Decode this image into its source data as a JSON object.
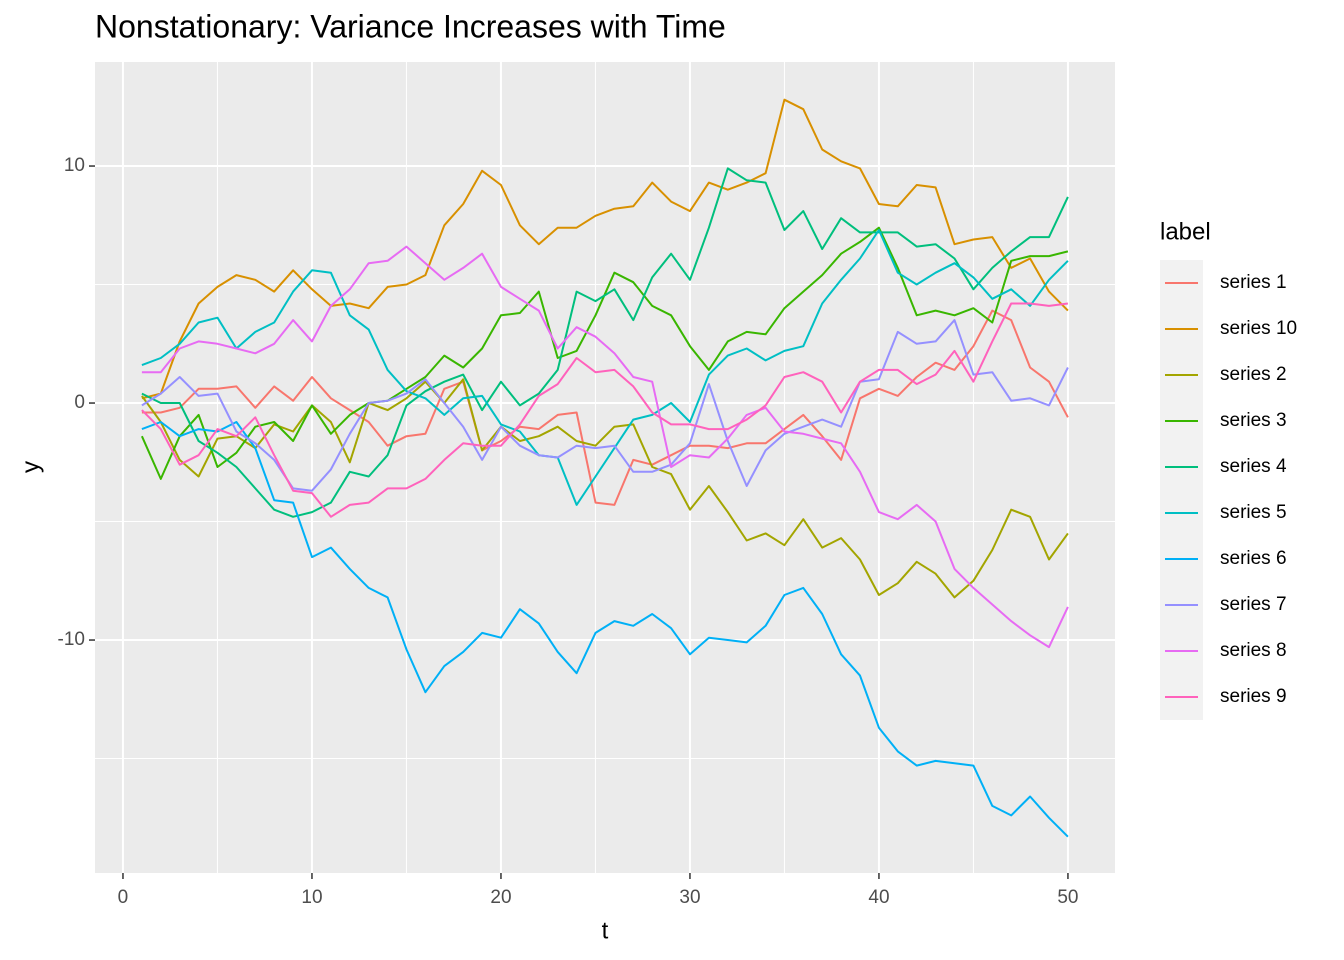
{
  "chart_data": {
    "type": "line",
    "title": "Nonstationary: Variance Increases with Time",
    "x_label": "t",
    "y_label": "y",
    "legend_title": "label",
    "x": [
      1,
      2,
      3,
      4,
      5,
      6,
      7,
      8,
      9,
      10,
      11,
      12,
      13,
      14,
      15,
      16,
      17,
      18,
      19,
      20,
      21,
      22,
      23,
      24,
      25,
      26,
      27,
      28,
      29,
      30,
      31,
      32,
      33,
      34,
      35,
      36,
      37,
      38,
      39,
      40,
      41,
      42,
      43,
      44,
      45,
      46,
      47,
      48,
      49,
      50
    ],
    "xlim": [
      -1.48,
      52.49
    ],
    "xticks": [
      0,
      10,
      20,
      30,
      40,
      50
    ],
    "ylim": [
      -19.83,
      14.39
    ],
    "yticks": [
      -10,
      0,
      10
    ],
    "grid": true,
    "series": [
      {
        "name": "series 1",
        "color": "#F8766D",
        "values": [
          -0.4,
          -0.4,
          -0.2,
          0.6,
          0.6,
          0.7,
          -0.2,
          0.7,
          0.1,
          1.1,
          0.2,
          -0.3,
          -0.8,
          -1.8,
          -1.4,
          -1.3,
          0.6,
          0.9,
          -2.0,
          -1.6,
          -1.0,
          -1.1,
          -0.5,
          -0.4,
          -4.2,
          -4.3,
          -2.4,
          -2.6,
          -2.2,
          -1.8,
          -1.8,
          -1.9,
          -1.7,
          -1.7,
          -1.1,
          -0.5,
          -1.4,
          -2.4,
          0.2,
          0.6,
          0.3,
          1.1,
          1.7,
          1.4,
          2.4,
          3.9,
          3.5,
          1.5,
          0.9,
          -0.6
        ]
      },
      {
        "name": "series 10",
        "color": "#D89000",
        "values": [
          0.2,
          0.4,
          2.6,
          4.2,
          4.9,
          5.4,
          5.2,
          4.7,
          5.6,
          4.8,
          4.1,
          4.2,
          4.0,
          4.9,
          5.0,
          5.4,
          7.5,
          8.4,
          9.8,
          9.2,
          7.5,
          6.7,
          7.4,
          7.4,
          7.9,
          8.2,
          8.3,
          9.3,
          8.5,
          8.1,
          9.3,
          9.0,
          9.3,
          9.7,
          12.8,
          12.4,
          10.7,
          10.2,
          9.9,
          8.4,
          8.3,
          9.2,
          9.1,
          6.7,
          6.9,
          7.0,
          5.7,
          6.1,
          4.7,
          3.9
        ]
      },
      {
        "name": "series 2",
        "color": "#A3A500",
        "values": [
          0.3,
          -0.8,
          -2.4,
          -3.1,
          -1.5,
          -1.4,
          -1.9,
          -0.9,
          -1.2,
          -0.1,
          -0.8,
          -2.5,
          0.0,
          -0.3,
          0.2,
          0.9,
          0.0,
          1.0,
          -2.0,
          -1.0,
          -1.6,
          -1.4,
          -1.0,
          -1.6,
          -1.8,
          -1.0,
          -0.9,
          -2.7,
          -3.0,
          -4.5,
          -3.5,
          -4.6,
          -5.8,
          -5.5,
          -6.0,
          -4.9,
          -6.1,
          -5.7,
          -6.6,
          -8.1,
          -7.6,
          -6.7,
          -7.2,
          -8.2,
          -7.5,
          -6.2,
          -4.5,
          -4.8,
          -6.6,
          -5.5
        ]
      },
      {
        "name": "series 3",
        "color": "#39B600",
        "values": [
          -1.4,
          -3.2,
          -1.4,
          -0.5,
          -2.7,
          -2.1,
          -1.0,
          -0.8,
          -1.6,
          -0.1,
          -1.3,
          -0.5,
          0.0,
          0.1,
          0.6,
          1.1,
          2.0,
          1.5,
          2.3,
          3.7,
          3.8,
          4.7,
          1.9,
          2.2,
          3.7,
          5.5,
          5.1,
          4.1,
          3.7,
          2.4,
          1.4,
          2.6,
          3.0,
          2.9,
          4.0,
          4.7,
          5.4,
          6.3,
          6.8,
          7.4,
          5.7,
          3.7,
          3.9,
          3.7,
          4.0,
          3.4,
          6.0,
          6.2,
          6.2,
          6.4
        ]
      },
      {
        "name": "series 4",
        "color": "#00BF7D",
        "values": [
          0.4,
          0.0,
          0.0,
          -1.6,
          -2.1,
          -2.7,
          -3.6,
          -4.5,
          -4.8,
          -4.6,
          -4.2,
          -2.9,
          -3.1,
          -2.2,
          -0.1,
          0.5,
          0.9,
          1.2,
          -0.3,
          0.9,
          -0.1,
          0.4,
          1.4,
          4.7,
          4.3,
          4.8,
          3.5,
          5.3,
          6.3,
          5.2,
          7.4,
          9.9,
          9.4,
          9.3,
          7.3,
          8.1,
          6.5,
          7.8,
          7.2,
          7.2,
          7.2,
          6.6,
          6.7,
          6.1,
          4.8,
          5.7,
          6.4,
          7.0,
          7.0,
          8.7
        ]
      },
      {
        "name": "series 5",
        "color": "#00BFC4",
        "values": [
          1.6,
          1.9,
          2.5,
          3.4,
          3.6,
          2.3,
          3.0,
          3.4,
          4.7,
          5.6,
          5.5,
          3.7,
          3.1,
          1.4,
          0.5,
          0.2,
          -0.5,
          0.2,
          0.3,
          -0.9,
          -1.2,
          -2.2,
          -2.3,
          -4.3,
          -3.1,
          -1.9,
          -0.7,
          -0.5,
          0.0,
          -0.8,
          1.2,
          2.0,
          2.3,
          1.8,
          2.2,
          2.4,
          4.2,
          5.2,
          6.1,
          7.3,
          5.5,
          5.0,
          5.5,
          5.9,
          5.3,
          4.4,
          4.8,
          4.1,
          5.2,
          6.0
        ]
      },
      {
        "name": "series 6",
        "color": "#00B0F6",
        "values": [
          -1.1,
          -0.8,
          -1.4,
          -1.1,
          -1.2,
          -0.8,
          -1.9,
          -4.1,
          -4.2,
          -6.5,
          -6.1,
          -7.0,
          -7.8,
          -8.2,
          -10.4,
          -12.2,
          -11.1,
          -10.5,
          -9.7,
          -9.9,
          -8.7,
          -9.3,
          -10.5,
          -11.4,
          -9.7,
          -9.2,
          -9.4,
          -8.9,
          -9.5,
          -10.6,
          -9.9,
          -10.0,
          -10.1,
          -9.4,
          -8.1,
          -7.8,
          -8.9,
          -10.6,
          -11.5,
          -13.7,
          -14.7,
          -15.3,
          -15.1,
          -15.2,
          -15.3,
          -17.0,
          -17.4,
          -16.6,
          -17.5,
          -18.3
        ]
      },
      {
        "name": "series 7",
        "color": "#9590FF",
        "values": [
          -0.1,
          0.4,
          1.1,
          0.3,
          0.4,
          -1.2,
          -1.7,
          -2.4,
          -3.6,
          -3.7,
          -2.8,
          -1.3,
          0.0,
          0.1,
          0.4,
          1.0,
          0.0,
          -1.0,
          -2.4,
          -1.0,
          -1.8,
          -2.2,
          -2.3,
          -1.8,
          -1.9,
          -1.8,
          -2.9,
          -2.9,
          -2.6,
          -1.7,
          0.8,
          -1.6,
          -3.5,
          -2.0,
          -1.3,
          -1.0,
          -0.7,
          -1.0,
          0.9,
          1.0,
          3.0,
          2.5,
          2.6,
          3.5,
          1.2,
          1.3,
          0.1,
          0.2,
          -0.1,
          1.5
        ]
      },
      {
        "name": "series 8",
        "color": "#E76BF3",
        "values": [
          1.3,
          1.3,
          2.3,
          2.6,
          2.5,
          2.3,
          2.1,
          2.5,
          3.5,
          2.6,
          4.1,
          4.8,
          5.9,
          6.0,
          6.6,
          5.9,
          5.2,
          5.7,
          6.3,
          4.9,
          4.4,
          3.9,
          2.3,
          3.2,
          2.8,
          2.1,
          1.1,
          0.9,
          -2.7,
          -2.2,
          -2.3,
          -1.5,
          -0.5,
          -0.2,
          -1.2,
          -1.3,
          -1.5,
          -1.7,
          -2.9,
          -4.6,
          -4.9,
          -4.3,
          -5.0,
          -7.0,
          -7.8,
          -8.5,
          -9.2,
          -9.8,
          -10.3,
          -8.6
        ]
      },
      {
        "name": "series 9",
        "color": "#FF62BC",
        "values": [
          -0.3,
          -1.1,
          -2.6,
          -2.2,
          -1.1,
          -1.4,
          -0.6,
          -2.2,
          -3.7,
          -3.8,
          -4.8,
          -4.3,
          -4.2,
          -3.6,
          -3.6,
          -3.2,
          -2.4,
          -1.7,
          -1.8,
          -1.8,
          -0.9,
          0.3,
          0.8,
          1.9,
          1.3,
          1.4,
          0.7,
          -0.4,
          -0.9,
          -0.9,
          -1.1,
          -1.1,
          -0.7,
          -0.1,
          1.1,
          1.3,
          0.9,
          -0.4,
          0.9,
          1.4,
          1.4,
          0.8,
          1.2,
          2.2,
          0.9,
          2.6,
          4.2,
          4.2,
          4.1,
          4.2
        ]
      }
    ]
  }
}
